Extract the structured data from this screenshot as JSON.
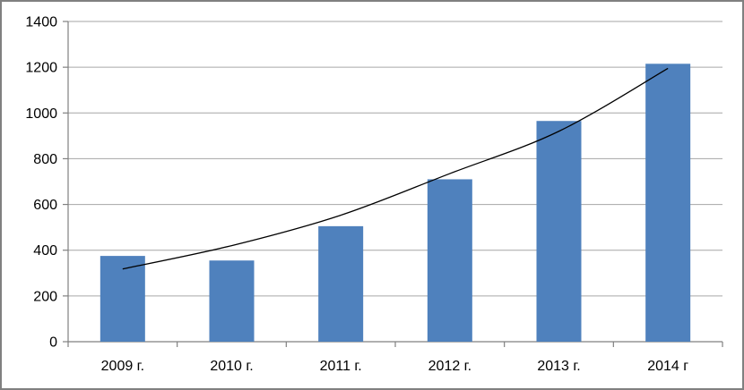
{
  "window": {
    "background": "#ffffff",
    "border_color": "#808080"
  },
  "chart_data": {
    "type": "bar",
    "title": "",
    "xlabel": "",
    "ylabel": "",
    "categories": [
      "2009 г.",
      "2010 г.",
      "2011 г.",
      "2012 г.",
      "2013 г.",
      "2014 г"
    ],
    "values": [
      375,
      355,
      505,
      710,
      965,
      1215
    ],
    "trendline": {
      "type": "line",
      "smooth": true,
      "values": [
        318,
        420,
        553,
        735,
        920,
        1195
      ],
      "color": "#000000"
    },
    "ylim": [
      0,
      1400
    ],
    "ytick_interval": 200,
    "ytick_labels": [
      "0",
      "200",
      "400",
      "600",
      "800",
      "1000",
      "1200",
      "1400"
    ],
    "grid": true,
    "legend_position": "none",
    "bar_color": "#4f81bd",
    "gridline_color": "#a6a6a6",
    "axis_color": "#808080",
    "text_color": "#000000"
  }
}
